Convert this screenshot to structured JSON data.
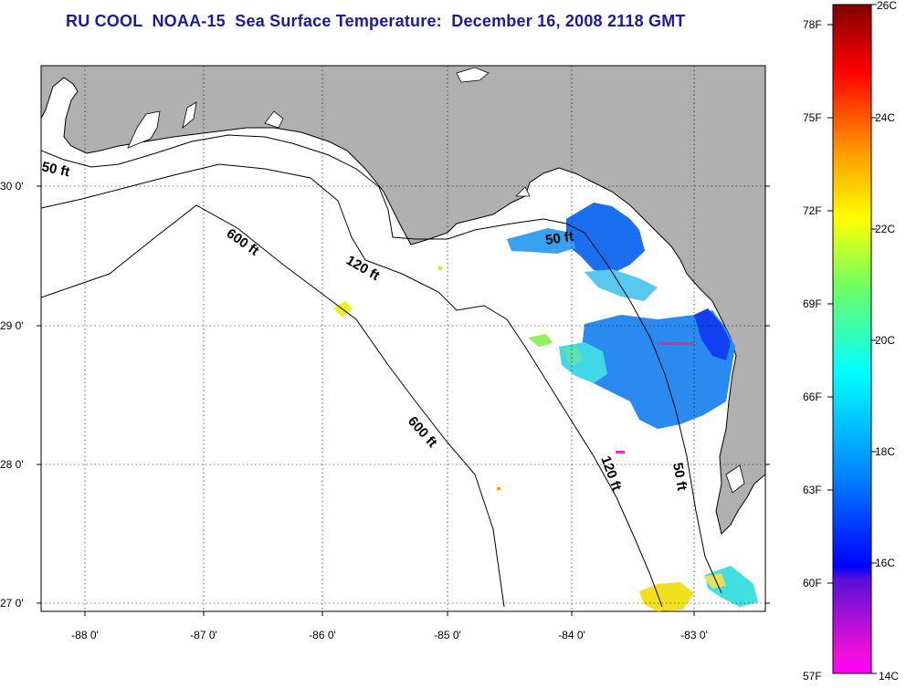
{
  "title": "RU COOL  NOAA-15  Sea Surface Temperature:  December 16, 2008 2118 GMT",
  "map": {
    "lon_range": [
      -88.3,
      -82.4
    ],
    "lat_range": [
      26.95,
      30.85
    ],
    "lon_ticks": [
      "-88 0'",
      "-87 0'",
      "-86 0'",
      "-85 0'",
      "-84 0'",
      "-83 0'"
    ],
    "lat_ticks": [
      "30 0'",
      "29 0'",
      "28 0'",
      "27 0'"
    ],
    "grid": "dotted",
    "land_color": "#b0b0b0",
    "contours": [
      {
        "depth": "50 ft",
        "labels": [
          "50 ft",
          "50 ft",
          "50 ft"
        ]
      },
      {
        "depth": "120 ft",
        "labels": [
          "120 ft",
          "120 ft"
        ]
      },
      {
        "depth": "600 ft",
        "labels": [
          "600 ft",
          "600 ft"
        ]
      }
    ]
  },
  "colorbar": {
    "fahrenheit_labels": [
      "78F",
      "75F",
      "72F",
      "69F",
      "66F",
      "63F",
      "60F",
      "57F"
    ],
    "celsius_labels": [
      "26C",
      "24C",
      "22C",
      "20C",
      "18C",
      "16C",
      "14C"
    ],
    "range_c": [
      14,
      26
    ]
  }
}
